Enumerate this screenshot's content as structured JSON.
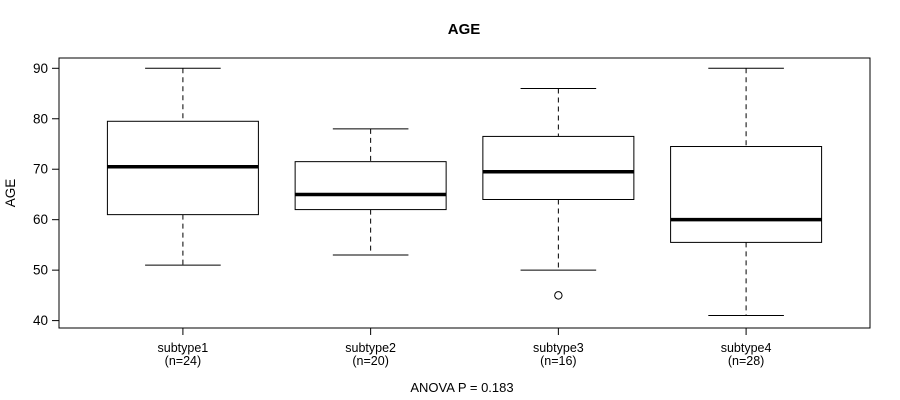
{
  "colors": {
    "line": "#000000",
    "background": "#ffffff"
  },
  "chart_data": {
    "type": "boxplot",
    "title": "AGE",
    "ylabel": "AGE",
    "xlabel": "",
    "footer": "ANOVA P = 0.183",
    "yticks": [
      40,
      50,
      60,
      70,
      80,
      90
    ],
    "ylim": [
      39,
      92
    ],
    "grid": false,
    "categories": [
      "subtype1",
      "subtype2",
      "subtype3",
      "subtype4"
    ],
    "groups": [
      {
        "label": "subtype1",
        "n_label": "(n=24)",
        "n": 24,
        "whisker_low": 51,
        "q1": 61,
        "median": 70.5,
        "q3": 79.5,
        "whisker_high": 90,
        "outliers": []
      },
      {
        "label": "subtype2",
        "n_label": "(n=20)",
        "n": 20,
        "whisker_low": 53,
        "q1": 62,
        "median": 65,
        "q3": 71.5,
        "whisker_high": 78,
        "outliers": []
      },
      {
        "label": "subtype3",
        "n_label": "(n=16)",
        "n": 16,
        "whisker_low": 50,
        "q1": 64,
        "median": 69.5,
        "q3": 76.5,
        "whisker_high": 86,
        "outliers": [
          45
        ]
      },
      {
        "label": "subtype4",
        "n_label": "(n=28)",
        "n": 28,
        "whisker_low": 41,
        "q1": 55.5,
        "median": 60,
        "q3": 74.5,
        "whisker_high": 90,
        "outliers": []
      }
    ]
  }
}
